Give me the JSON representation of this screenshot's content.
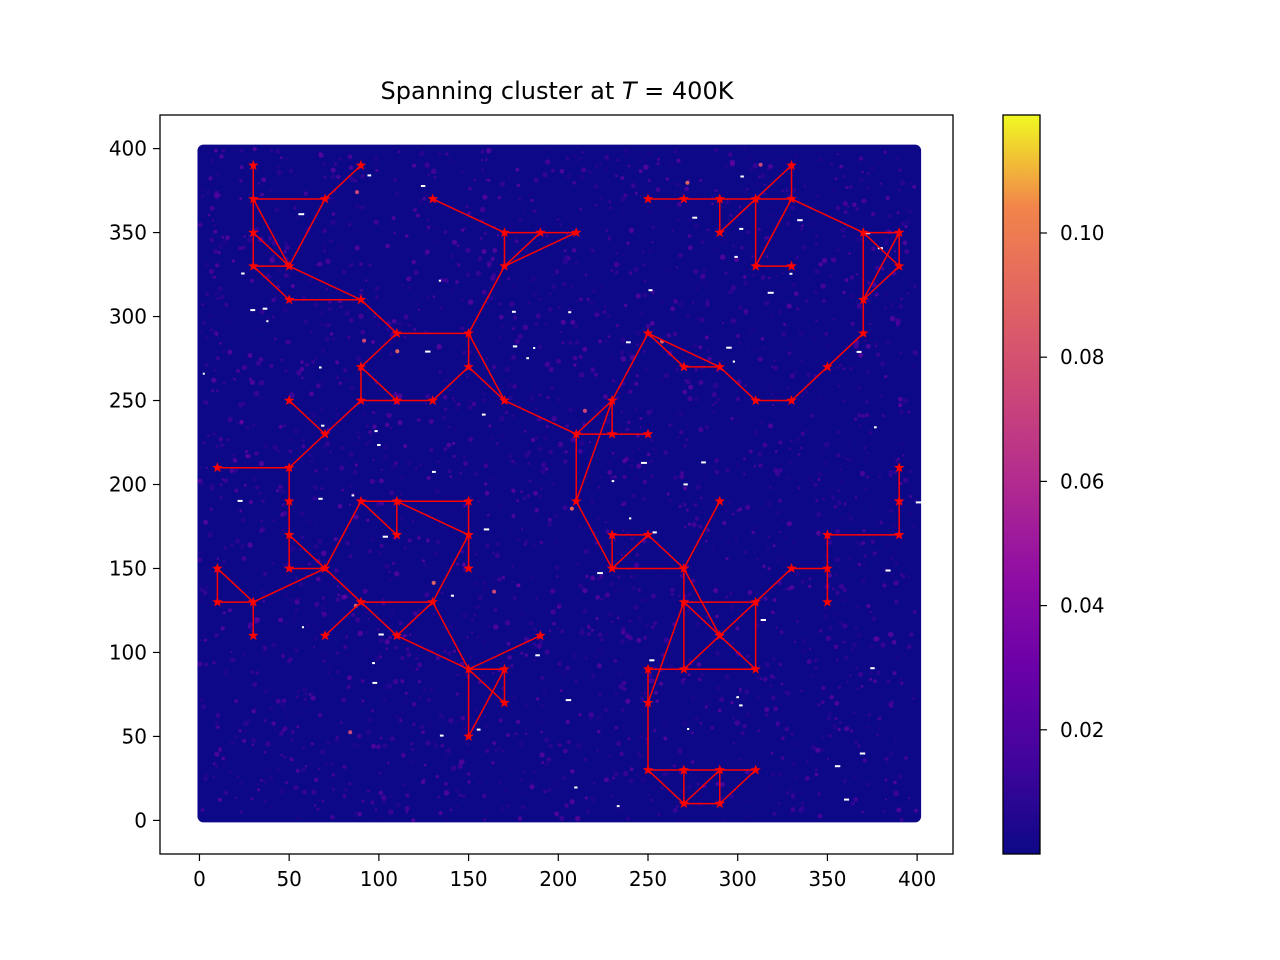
{
  "chart_data": {
    "type": "scatter",
    "title_main": "Spanning cluster at ",
    "title_var": "T",
    "title_rest": " = 400K",
    "xlabel": "",
    "ylabel": "",
    "xlim": [
      -22,
      420
    ],
    "ylim": [
      -20,
      420
    ],
    "x_ticks": [
      0,
      50,
      100,
      150,
      200,
      250,
      300,
      350,
      400
    ],
    "y_ticks": [
      0,
      50,
      100,
      150,
      200,
      250,
      300,
      350,
      400
    ],
    "grid": false,
    "background_field": {
      "description_type": "dense scatter of lattice sites colored by value",
      "x_range": [
        0,
        400
      ],
      "y_range": [
        0,
        400
      ],
      "colormap": "plasma",
      "typical_value": 0.005
    },
    "colorbar": {
      "range": [
        0.0,
        0.119
      ],
      "ticks": [
        0.02,
        0.04,
        0.06,
        0.08,
        0.1
      ],
      "tick_labels": [
        "0.02",
        "0.04",
        "0.06",
        "0.08",
        "0.10"
      ]
    },
    "cluster_color": "#ff0000",
    "cluster_nodes": [
      [
        30,
        390
      ],
      [
        30,
        370
      ],
      [
        70,
        370
      ],
      [
        90,
        390
      ],
      [
        30,
        350
      ],
      [
        30,
        330
      ],
      [
        50,
        330
      ],
      [
        50,
        310
      ],
      [
        90,
        310
      ],
      [
        110,
        290
      ],
      [
        150,
        290
      ],
      [
        170,
        330
      ],
      [
        170,
        350
      ],
      [
        190,
        350
      ],
      [
        210,
        350
      ],
      [
        130,
        370
      ],
      [
        90,
        270
      ],
      [
        90,
        250
      ],
      [
        110,
        250
      ],
      [
        130,
        250
      ],
      [
        150,
        270
      ],
      [
        170,
        250
      ],
      [
        70,
        230
      ],
      [
        50,
        250
      ],
      [
        10,
        210
      ],
      [
        50,
        210
      ],
      [
        50,
        190
      ],
      [
        50,
        170
      ],
      [
        50,
        150
      ],
      [
        70,
        150
      ],
      [
        90,
        190
      ],
      [
        110,
        190
      ],
      [
        110,
        170
      ],
      [
        150,
        190
      ],
      [
        150,
        170
      ],
      [
        150,
        150
      ],
      [
        90,
        130
      ],
      [
        130,
        130
      ],
      [
        110,
        110
      ],
      [
        70,
        110
      ],
      [
        10,
        150
      ],
      [
        10,
        130
      ],
      [
        30,
        130
      ],
      [
        30,
        110
      ],
      [
        150,
        90
      ],
      [
        170,
        90
      ],
      [
        170,
        70
      ],
      [
        150,
        50
      ],
      [
        190,
        110
      ],
      [
        210,
        230
      ],
      [
        230,
        250
      ],
      [
        230,
        230
      ],
      [
        250,
        230
      ],
      [
        250,
        290
      ],
      [
        270,
        270
      ],
      [
        290,
        270
      ],
      [
        310,
        250
      ],
      [
        330,
        250
      ],
      [
        350,
        270
      ],
      [
        370,
        290
      ],
      [
        370,
        310
      ],
      [
        370,
        350
      ],
      [
        390,
        350
      ],
      [
        390,
        330
      ],
      [
        250,
        370
      ],
      [
        270,
        370
      ],
      [
        290,
        370
      ],
      [
        290,
        350
      ],
      [
        310,
        370
      ],
      [
        330,
        370
      ],
      [
        330,
        390
      ],
      [
        310,
        330
      ],
      [
        330,
        330
      ],
      [
        210,
        190
      ],
      [
        230,
        170
      ],
      [
        250,
        170
      ],
      [
        230,
        150
      ],
      [
        270,
        150
      ],
      [
        290,
        190
      ],
      [
        270,
        130
      ],
      [
        290,
        110
      ],
      [
        310,
        130
      ],
      [
        310,
        90
      ],
      [
        270,
        90
      ],
      [
        250,
        90
      ],
      [
        250,
        70
      ],
      [
        330,
        150
      ],
      [
        350,
        150
      ],
      [
        350,
        170
      ],
      [
        350,
        130
      ],
      [
        390,
        170
      ],
      [
        390,
        190
      ],
      [
        390,
        210
      ],
      [
        250,
        30
      ],
      [
        270,
        30
      ],
      [
        290,
        30
      ],
      [
        310,
        30
      ],
      [
        270,
        10
      ],
      [
        290,
        10
      ]
    ],
    "cluster_edges": [
      [
        [
          30,
          390
        ],
        [
          30,
          370
        ]
      ],
      [
        [
          30,
          370
        ],
        [
          70,
          370
        ]
      ],
      [
        [
          70,
          370
        ],
        [
          90,
          390
        ]
      ],
      [
        [
          30,
          370
        ],
        [
          50,
          330
        ]
      ],
      [
        [
          70,
          370
        ],
        [
          50,
          330
        ]
      ],
      [
        [
          30,
          350
        ],
        [
          50,
          330
        ]
      ],
      [
        [
          30,
          370
        ],
        [
          30,
          350
        ]
      ],
      [
        [
          30,
          350
        ],
        [
          30,
          330
        ]
      ],
      [
        [
          30,
          330
        ],
        [
          50,
          330
        ]
      ],
      [
        [
          30,
          330
        ],
        [
          50,
          310
        ]
      ],
      [
        [
          50,
          310
        ],
        [
          90,
          310
        ]
      ],
      [
        [
          50,
          330
        ],
        [
          90,
          310
        ]
      ],
      [
        [
          90,
          310
        ],
        [
          110,
          290
        ]
      ],
      [
        [
          110,
          290
        ],
        [
          150,
          290
        ]
      ],
      [
        [
          150,
          290
        ],
        [
          170,
          330
        ]
      ],
      [
        [
          170,
          330
        ],
        [
          170,
          350
        ]
      ],
      [
        [
          170,
          330
        ],
        [
          190,
          350
        ]
      ],
      [
        [
          170,
          330
        ],
        [
          210,
          350
        ]
      ],
      [
        [
          170,
          350
        ],
        [
          210,
          350
        ]
      ],
      [
        [
          130,
          370
        ],
        [
          170,
          350
        ]
      ],
      [
        [
          110,
          290
        ],
        [
          90,
          270
        ]
      ],
      [
        [
          90,
          270
        ],
        [
          90,
          250
        ]
      ],
      [
        [
          90,
          270
        ],
        [
          110,
          250
        ]
      ],
      [
        [
          90,
          250
        ],
        [
          130,
          250
        ]
      ],
      [
        [
          130,
          250
        ],
        [
          150,
          270
        ]
      ],
      [
        [
          150,
          270
        ],
        [
          150,
          290
        ]
      ],
      [
        [
          150,
          290
        ],
        [
          170,
          250
        ]
      ],
      [
        [
          150,
          270
        ],
        [
          170,
          250
        ]
      ],
      [
        [
          90,
          250
        ],
        [
          70,
          230
        ]
      ],
      [
        [
          70,
          230
        ],
        [
          50,
          250
        ]
      ],
      [
        [
          70,
          230
        ],
        [
          50,
          210
        ]
      ],
      [
        [
          10,
          210
        ],
        [
          50,
          210
        ]
      ],
      [
        [
          50,
          210
        ],
        [
          50,
          150
        ]
      ],
      [
        [
          50,
          170
        ],
        [
          70,
          150
        ]
      ],
      [
        [
          50,
          150
        ],
        [
          70,
          150
        ]
      ],
      [
        [
          70,
          150
        ],
        [
          90,
          190
        ]
      ],
      [
        [
          90,
          190
        ],
        [
          110,
          170
        ]
      ],
      [
        [
          110,
          190
        ],
        [
          110,
          170
        ]
      ],
      [
        [
          90,
          190
        ],
        [
          150,
          190
        ]
      ],
      [
        [
          150,
          190
        ],
        [
          150,
          150
        ]
      ],
      [
        [
          110,
          190
        ],
        [
          150,
          170
        ]
      ],
      [
        [
          70,
          150
        ],
        [
          90,
          130
        ]
      ],
      [
        [
          70,
          150
        ],
        [
          30,
          130
        ]
      ],
      [
        [
          90,
          130
        ],
        [
          130,
          130
        ]
      ],
      [
        [
          90,
          130
        ],
        [
          70,
          110
        ]
      ],
      [
        [
          90,
          130
        ],
        [
          110,
          110
        ]
      ],
      [
        [
          110,
          110
        ],
        [
          130,
          130
        ]
      ],
      [
        [
          130,
          130
        ],
        [
          150,
          90
        ]
      ],
      [
        [
          110,
          110
        ],
        [
          150,
          90
        ]
      ],
      [
        [
          130,
          130
        ],
        [
          150,
          170
        ]
      ],
      [
        [
          10,
          150
        ],
        [
          10,
          130
        ]
      ],
      [
        [
          10,
          150
        ],
        [
          30,
          130
        ]
      ],
      [
        [
          10,
          130
        ],
        [
          30,
          130
        ]
      ],
      [
        [
          30,
          130
        ],
        [
          30,
          110
        ]
      ],
      [
        [
          150,
          90
        ],
        [
          170,
          90
        ]
      ],
      [
        [
          150,
          90
        ],
        [
          170,
          70
        ]
      ],
      [
        [
          150,
          90
        ],
        [
          150,
          50
        ]
      ],
      [
        [
          150,
          50
        ],
        [
          170,
          90
        ]
      ],
      [
        [
          170,
          90
        ],
        [
          170,
          70
        ]
      ],
      [
        [
          150,
          90
        ],
        [
          190,
          110
        ]
      ],
      [
        [
          170,
          250
        ],
        [
          210,
          230
        ]
      ],
      [
        [
          210,
          230
        ],
        [
          230,
          250
        ]
      ],
      [
        [
          210,
          230
        ],
        [
          250,
          230
        ]
      ],
      [
        [
          230,
          250
        ],
        [
          230,
          230
        ]
      ],
      [
        [
          230,
          250
        ],
        [
          250,
          290
        ]
      ],
      [
        [
          210,
          230
        ],
        [
          210,
          190
        ]
      ],
      [
        [
          210,
          190
        ],
        [
          230,
          250
        ]
      ],
      [
        [
          250,
          290
        ],
        [
          270,
          270
        ]
      ],
      [
        [
          250,
          290
        ],
        [
          290,
          270
        ]
      ],
      [
        [
          270,
          270
        ],
        [
          290,
          270
        ]
      ],
      [
        [
          290,
          270
        ],
        [
          310,
          250
        ]
      ],
      [
        [
          310,
          250
        ],
        [
          330,
          250
        ]
      ],
      [
        [
          330,
          250
        ],
        [
          350,
          270
        ]
      ],
      [
        [
          350,
          270
        ],
        [
          370,
          290
        ]
      ],
      [
        [
          370,
          290
        ],
        [
          370,
          350
        ]
      ],
      [
        [
          370,
          310
        ],
        [
          390,
          350
        ]
      ],
      [
        [
          370,
          350
        ],
        [
          390,
          350
        ]
      ],
      [
        [
          370,
          350
        ],
        [
          390,
          330
        ]
      ],
      [
        [
          390,
          350
        ],
        [
          390,
          330
        ]
      ],
      [
        [
          370,
          310
        ],
        [
          390,
          330
        ]
      ],
      [
        [
          250,
          370
        ],
        [
          330,
          370
        ]
      ],
      [
        [
          290,
          370
        ],
        [
          290,
          350
        ]
      ],
      [
        [
          290,
          350
        ],
        [
          310,
          370
        ]
      ],
      [
        [
          310,
          370
        ],
        [
          330,
          390
        ]
      ],
      [
        [
          330,
          390
        ],
        [
          330,
          370
        ]
      ],
      [
        [
          310,
          370
        ],
        [
          310,
          330
        ]
      ],
      [
        [
          330,
          370
        ],
        [
          370,
          350
        ]
      ],
      [
        [
          310,
          330
        ],
        [
          330,
          370
        ]
      ],
      [
        [
          310,
          330
        ],
        [
          330,
          330
        ]
      ],
      [
        [
          210,
          190
        ],
        [
          230,
          150
        ]
      ],
      [
        [
          230,
          170
        ],
        [
          230,
          150
        ]
      ],
      [
        [
          230,
          170
        ],
        [
          250,
          170
        ]
      ],
      [
        [
          250,
          170
        ],
        [
          230,
          150
        ]
      ],
      [
        [
          230,
          150
        ],
        [
          270,
          150
        ]
      ],
      [
        [
          250,
          170
        ],
        [
          270,
          150
        ]
      ],
      [
        [
          270,
          150
        ],
        [
          290,
          190
        ]
      ],
      [
        [
          270,
          150
        ],
        [
          270,
          130
        ]
      ],
      [
        [
          270,
          130
        ],
        [
          290,
          110
        ]
      ],
      [
        [
          270,
          150
        ],
        [
          290,
          110
        ]
      ],
      [
        [
          270,
          130
        ],
        [
          310,
          130
        ]
      ],
      [
        [
          290,
          110
        ],
        [
          310,
          130
        ]
      ],
      [
        [
          290,
          110
        ],
        [
          310,
          90
        ]
      ],
      [
        [
          270,
          90
        ],
        [
          310,
          90
        ]
      ],
      [
        [
          270,
          90
        ],
        [
          290,
          110
        ]
      ],
      [
        [
          270,
          130
        ],
        [
          270,
          90
        ]
      ],
      [
        [
          310,
          130
        ],
        [
          310,
          90
        ]
      ],
      [
        [
          270,
          90
        ],
        [
          250,
          90
        ]
      ],
      [
        [
          250,
          90
        ],
        [
          250,
          70
        ]
      ],
      [
        [
          250,
          70
        ],
        [
          270,
          130
        ]
      ],
      [
        [
          250,
          70
        ],
        [
          250,
          30
        ]
      ],
      [
        [
          310,
          130
        ],
        [
          330,
          150
        ]
      ],
      [
        [
          330,
          150
        ],
        [
          350,
          150
        ]
      ],
      [
        [
          350,
          150
        ],
        [
          350,
          130
        ]
      ],
      [
        [
          350,
          150
        ],
        [
          350,
          170
        ]
      ],
      [
        [
          350,
          170
        ],
        [
          390,
          170
        ]
      ],
      [
        [
          390,
          170
        ],
        [
          390,
          210
        ]
      ],
      [
        [
          250,
          30
        ],
        [
          310,
          30
        ]
      ],
      [
        [
          250,
          30
        ],
        [
          270,
          10
        ]
      ],
      [
        [
          270,
          30
        ],
        [
          270,
          10
        ]
      ],
      [
        [
          270,
          10
        ],
        [
          290,
          10
        ]
      ],
      [
        [
          270,
          10
        ],
        [
          290,
          30
        ]
      ],
      [
        [
          290,
          30
        ],
        [
          290,
          10
        ]
      ],
      [
        [
          290,
          10
        ],
        [
          310,
          30
        ]
      ]
    ]
  }
}
